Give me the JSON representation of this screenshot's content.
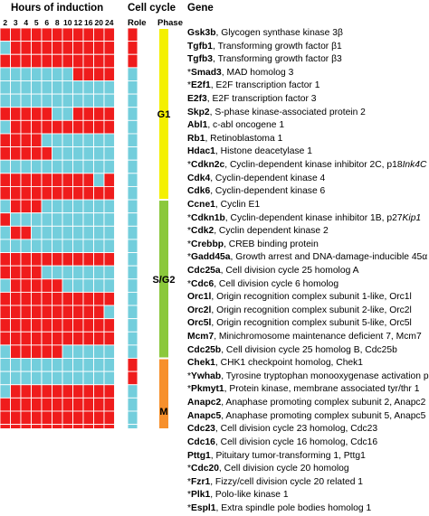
{
  "headers": {
    "hours_of_induction": "Hours of induction",
    "cell_cycle": "Cell cycle",
    "gene": "Gene",
    "role": "Role",
    "phase": "Phase"
  },
  "hours": [
    "2",
    "3",
    "4",
    "5",
    "6",
    "8",
    "10",
    "12",
    "16",
    "20",
    "24"
  ],
  "colors": {
    "red": "#ef1c1c",
    "blue": "#73cedc",
    "grid": "#ffffff",
    "phase_g1": "#f4f000",
    "phase_s_g2": "#8bc83c",
    "phase_m": "#f7902c"
  },
  "phases": [
    {
      "label": "G1",
      "start": 0,
      "end": 12
    },
    {
      "label": "S/G2",
      "start": 13,
      "end": 24
    },
    {
      "label": "M",
      "start": 25,
      "end": 32
    }
  ],
  "genes": [
    {
      "star": "",
      "symbol": "Gsk3b",
      "desc": ", Glycogen synthase kinase 3β"
    },
    {
      "star": "",
      "symbol": "Tgfb1",
      "desc": ", Transforming growth factor β1"
    },
    {
      "star": "",
      "symbol": "Tgfb3",
      "desc": ", Transforming growth factor β3"
    },
    {
      "star": "*",
      "symbol": "Smad3",
      "desc": ", MAD homolog 3"
    },
    {
      "star": "*",
      "symbol": "E2f1",
      "desc": ", E2F transcription factor 1"
    },
    {
      "star": "",
      "symbol": "E2f3",
      "desc": ", E2F transcription factor 3"
    },
    {
      "star": "",
      "symbol": "Skp2",
      "desc": ", S-phase kinase-associated protein 2"
    },
    {
      "star": "",
      "symbol": "Abl1",
      "desc": ", c-abl oncogene 1"
    },
    {
      "star": "",
      "symbol": "Rb1",
      "desc": ", Retinoblastoma 1"
    },
    {
      "star": "",
      "symbol": "Hdac1",
      "desc": ", Histone deacetylase 1"
    },
    {
      "star": "*",
      "symbol": "Cdkn2c",
      "desc": ", Cyclin-dependent kinase inhibitor 2C, p18",
      "italic": "Ink4C"
    },
    {
      "star": "",
      "symbol": "Cdk4",
      "desc": ", Cyclin-dependent kinase 4"
    },
    {
      "star": "",
      "symbol": "Cdk6",
      "desc": ", Cyclin-dependent kinase 6"
    },
    {
      "star": "",
      "symbol": "Ccne1",
      "desc": ", Cyclin E1"
    },
    {
      "star": "*",
      "symbol": "Cdkn1b",
      "desc": ", Cyclin-dependent kinase inhibitor 1B, p27",
      "italic": "Kip1"
    },
    {
      "star": "*",
      "symbol": "Cdk2",
      "desc": ", Cyclin dependent kinase 2"
    },
    {
      "star": "*",
      "symbol": "Crebbp",
      "desc": ", CREB binding protein"
    },
    {
      "star": "*",
      "symbol": "Gadd45a",
      "desc": ", Growth arrest and DNA-damage-inducible 45α"
    },
    {
      "star": "",
      "symbol": "Cdc25a",
      "desc": ", Cell division cycle 25 homolog A"
    },
    {
      "star": "*",
      "symbol": "Cdc6",
      "desc": ", Cell division cycle 6 homolog"
    },
    {
      "star": "",
      "symbol": "Orc1l",
      "desc": ", Origin recognition complex subunit 1-like, Orc1l"
    },
    {
      "star": "",
      "symbol": "Orc2l",
      "desc": ", Origin recognition complex subunit 2-like, Orc2l"
    },
    {
      "star": "",
      "symbol": "Orc5l",
      "desc": ", Origin recognition complex subunit 5-like, Orc5l"
    },
    {
      "star": "",
      "symbol": "Mcm7",
      "desc": ", Minichromosome maintenance deficient 7, Mcm7"
    },
    {
      "star": "",
      "symbol": "Cdc25b",
      "desc": ", Cell division cycle 25 homolog B, Cdc25b"
    },
    {
      "star": "",
      "symbol": "Chek1",
      "desc": ", CHK1 checkpoint homolog, Chek1"
    },
    {
      "star": "*",
      "symbol": "Ywhab",
      "desc": ", Tyrosine tryptophan monooxygenase activation prote"
    },
    {
      "star": "*",
      "symbol": "Pkmyt1",
      "desc": ", Protein kinase, membrane associated tyr/thr 1"
    },
    {
      "star": "",
      "symbol": "Anapc2",
      "desc": ", Anaphase promoting complex subunit 2, Anapc2"
    },
    {
      "star": "",
      "symbol": "Anapc5",
      "desc": ", Anaphase promoting complex subunit 5, Anapc5"
    },
    {
      "star": "",
      "symbol": "Cdc23",
      "desc": ", Cell division cycle 23 homolog, Cdc23"
    },
    {
      "star": "",
      "symbol": "Cdc16",
      "desc": ", Cell division cycle 16 homolog, Cdc16"
    },
    {
      "star": "",
      "symbol": "Pttg1",
      "desc": ", Pituitary tumor-transforming 1, Pttg1"
    },
    {
      "star": "*",
      "symbol": "Cdc20",
      "desc": ", Cell division cycle 20 homolog"
    },
    {
      "star": "*",
      "symbol": "Fzr1",
      "desc": ", Fizzy/cell division cycle 20 related 1"
    },
    {
      "star": "*",
      "symbol": "Plk1",
      "desc": ", Polo-like kinase 1"
    },
    {
      "star": "*",
      "symbol": "Espl1",
      "desc": ", Extra spindle pole bodies homolog 1"
    }
  ],
  "heatmap": [
    "RRRRRRRRRRR",
    "BRRRRRRRRRR",
    "RRRRRRRRRRR",
    "BBBBBBBRRRR",
    "BBBBBBBBBBB",
    "BBBBBBBBBBB",
    "RRRRRBBRRRR",
    "BRRRRRRRRRR",
    "RRRRBBBBBBB",
    "RRRRRBBBBBB",
    "BBBBBBBBBBB",
    "RRRRRRRRRBR",
    "RRRRRRRRRRR",
    "BRRRBBBBBBB",
    "RBBBBBBBBBB",
    "BRRBBBBBBBB",
    "BBBBBBBBBBB",
    "RRRRRRRRRRR",
    "RRRRBBBBBBB",
    "BRRRRRBBBBB",
    "RRRRRRRRRRR",
    "RRRRRRRRRRB",
    "RRRRRRRRRRR",
    "RRRRRRRRRRR",
    "BRRRRRBBBBB",
    "BBBBBBBBBBB",
    "BBBBBBBBBBB",
    "BRRRRRRRRRR",
    "RRRRRRRRRRR",
    "RRRRRRRRRRR",
    "RRRRRRRRRRR",
    "BRRRRRRRRRR",
    "RRRRRRRRRRR",
    "RRRRRBBBBBB",
    "RRRRRRBBBBB",
    "RRRRRRRRBBB",
    "RRRRRRRRRBB"
  ],
  "roles": "RRRBBBBBBBBBBBBBBBBBBBBBBRRBBBBBBBBBB"
}
